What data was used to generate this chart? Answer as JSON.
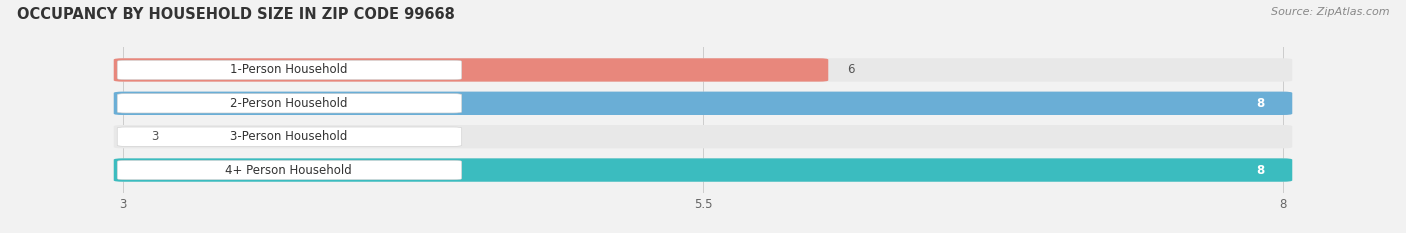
{
  "title": "OCCUPANCY BY HOUSEHOLD SIZE IN ZIP CODE 99668",
  "source": "Source: ZipAtlas.com",
  "categories": [
    "1-Person Household",
    "2-Person Household",
    "3-Person Household",
    "4+ Person Household"
  ],
  "values": [
    6,
    8,
    3,
    8
  ],
  "bar_colors": [
    "#E8877C",
    "#6AAED6",
    "#C4A8D4",
    "#3BBCBF"
  ],
  "track_color": "#E8E8E8",
  "label_bg_color": "#FFFFFF",
  "bar_height": 0.62,
  "xlim": [
    2.5,
    8.5
  ],
  "xmax": 8.0,
  "xmin": 3.0,
  "xticks": [
    3,
    5.5,
    8
  ],
  "background_color": "#F2F2F2",
  "plot_bg_color": "#F2F2F2",
  "title_fontsize": 10.5,
  "source_fontsize": 8,
  "label_fontsize": 8.5,
  "value_fontsize": 8.5,
  "tick_fontsize": 8.5
}
